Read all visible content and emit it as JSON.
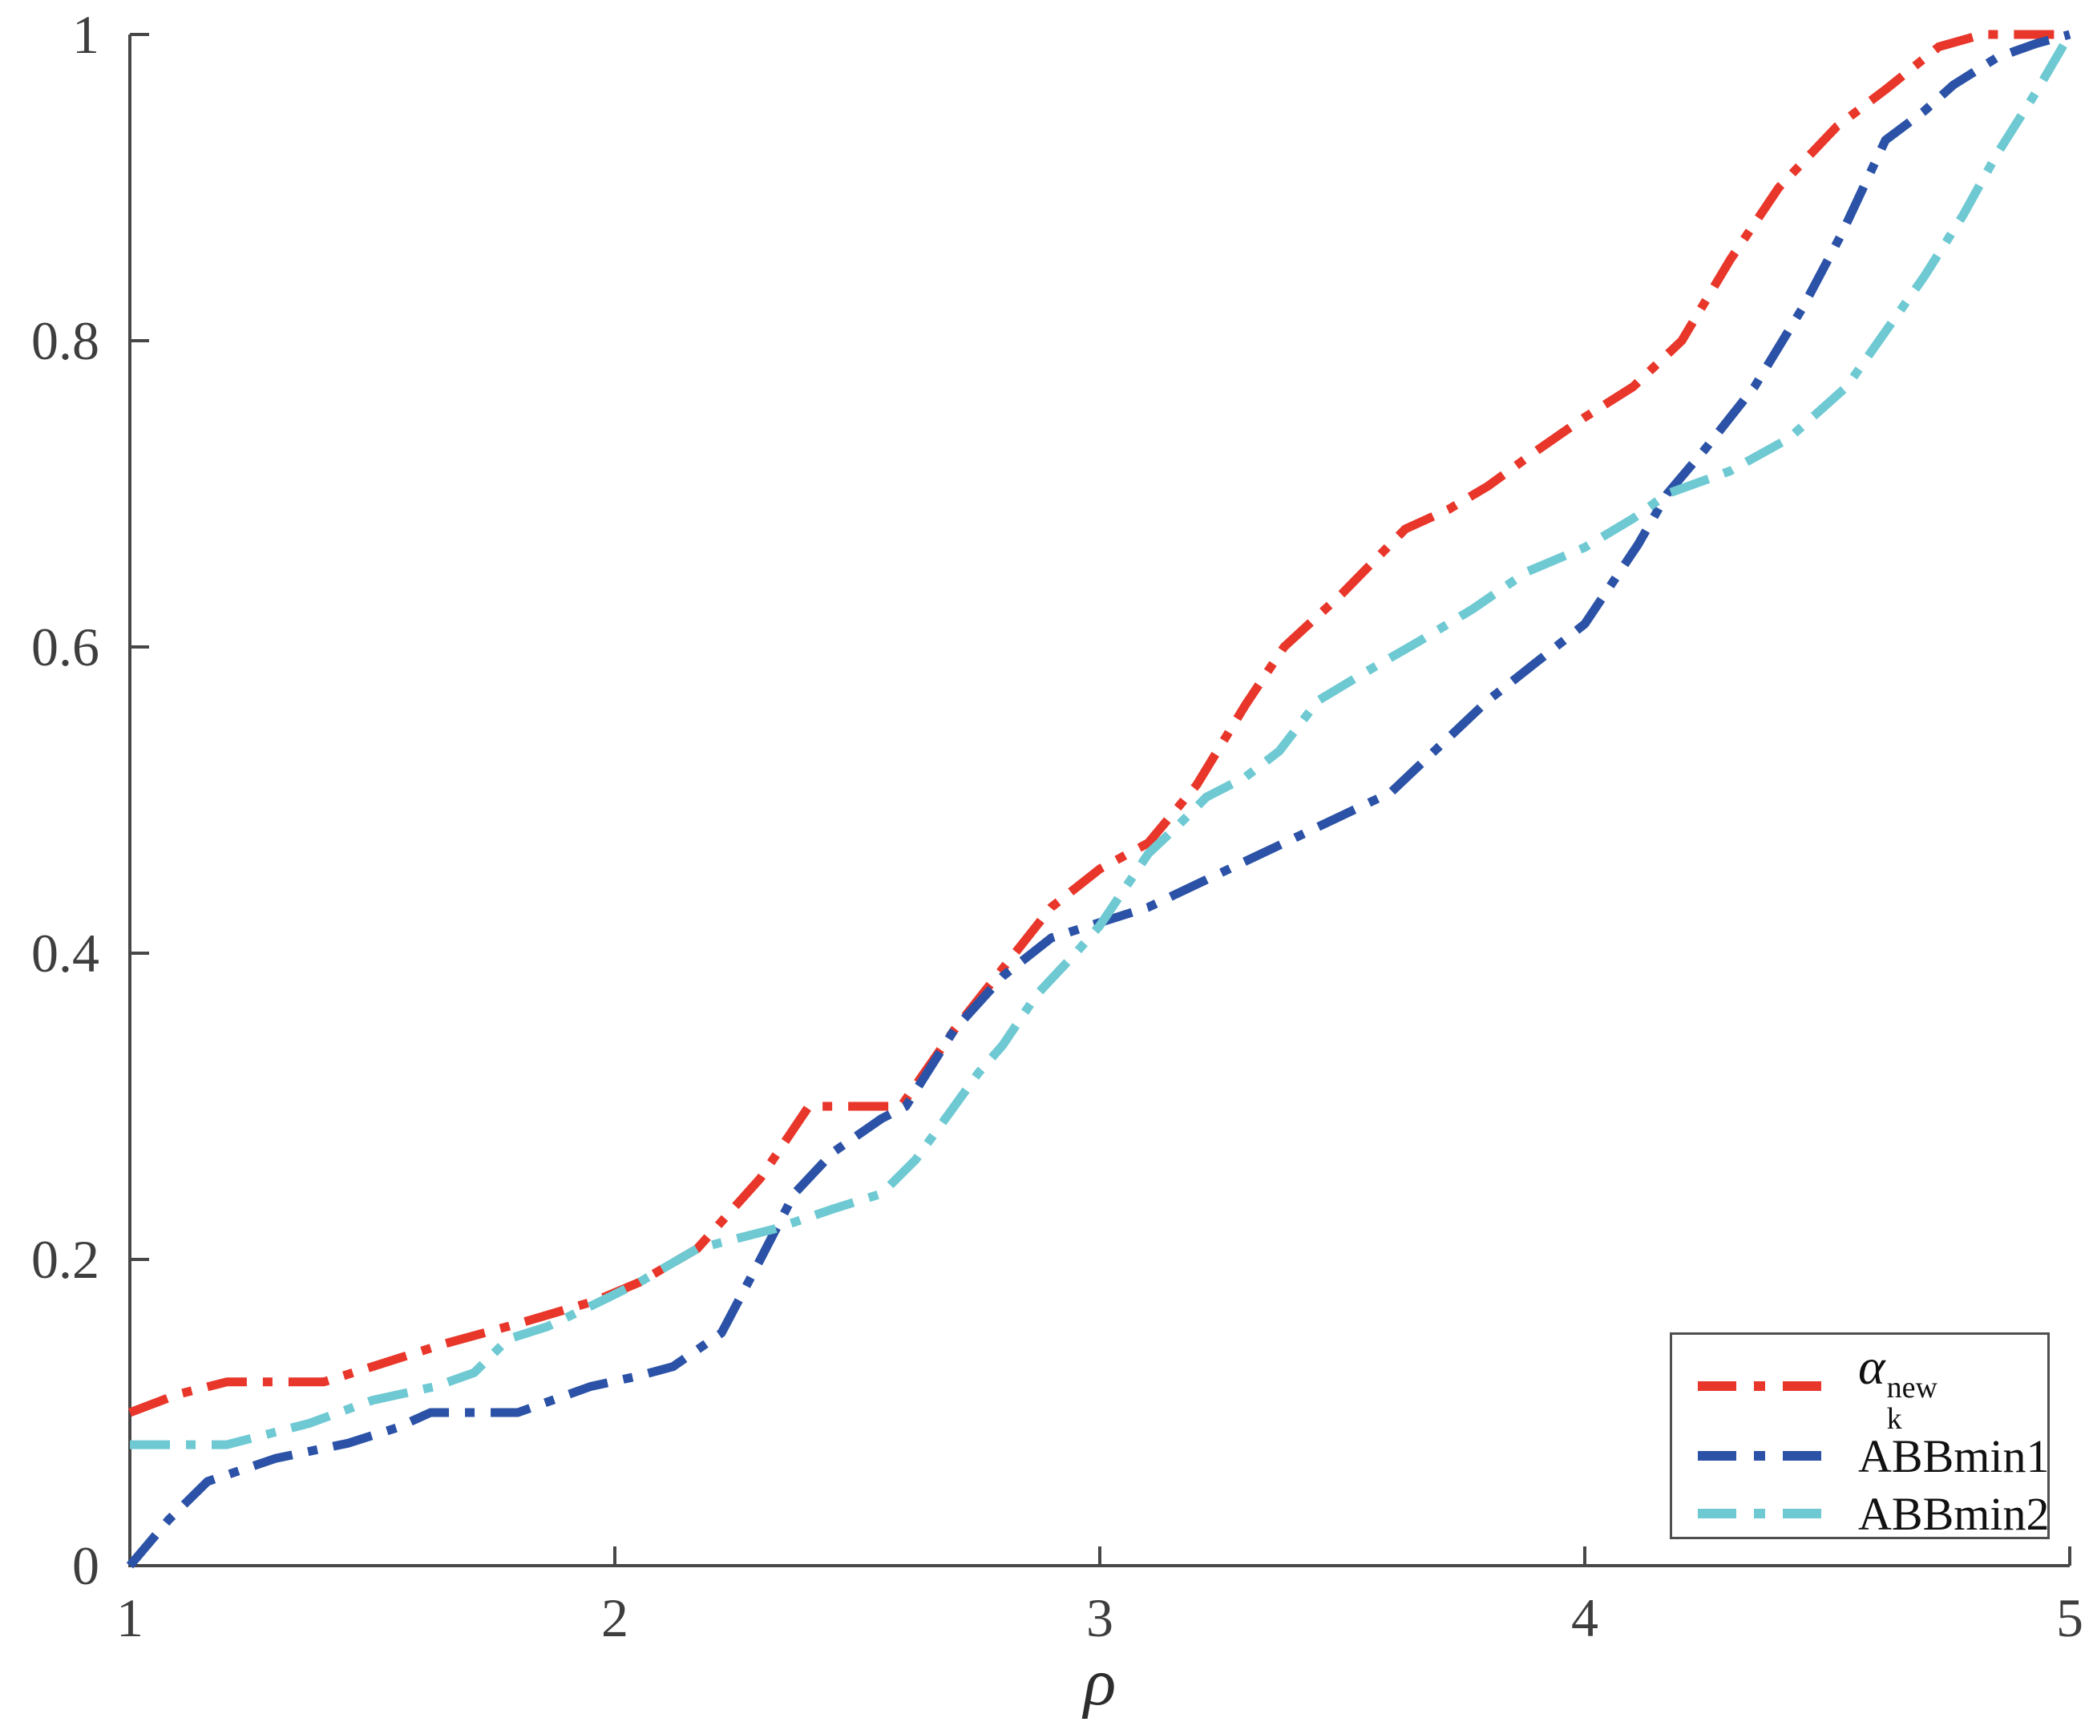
{
  "figure": {
    "background": "#ffffff"
  },
  "axis": {
    "line_color": "#474747",
    "tick_label_color": "#3e3e3e",
    "tick_length": 24,
    "line_width": 4
  },
  "legend": {
    "border_color": "#4f4f4f",
    "items": [
      {
        "name": "alpha-k-new",
        "symbol": "α",
        "sup": "new",
        "sub": "k"
      },
      {
        "name": "ABBmin1",
        "label": "ABBmin1"
      },
      {
        "name": "ABBmin2",
        "label": "ABBmin2"
      }
    ]
  },
  "chart_data": {
    "type": "line",
    "title": "",
    "xlabel": "ρ",
    "ylabel": "",
    "xlim": [
      1,
      5
    ],
    "ylim": [
      0,
      1
    ],
    "x_ticks": [
      1,
      2,
      3,
      4,
      5
    ],
    "x_tick_labels": [
      "1",
      "2",
      "3",
      "4",
      "5"
    ],
    "y_ticks": [
      0,
      0.2,
      0.4,
      0.6,
      0.8,
      1
    ],
    "y_tick_labels": [
      "0",
      "0.2",
      "0.4",
      "0.6",
      "0.8",
      "1"
    ],
    "grid": false,
    "legend_position": "lower right",
    "line_style": "dash-dot",
    "series": [
      {
        "name": "alpha_k_new",
        "color": "#e8362a",
        "points": [
          [
            1.0,
            0.1
          ],
          [
            1.1,
            0.112
          ],
          [
            1.2,
            0.12
          ],
          [
            1.4,
            0.12
          ],
          [
            1.5,
            0.13
          ],
          [
            1.65,
            0.145
          ],
          [
            1.8,
            0.158
          ],
          [
            1.96,
            0.173
          ],
          [
            2.05,
            0.185
          ],
          [
            2.17,
            0.207
          ],
          [
            2.3,
            0.253
          ],
          [
            2.4,
            0.3
          ],
          [
            2.59,
            0.3
          ],
          [
            2.7,
            0.35
          ],
          [
            2.8,
            0.39
          ],
          [
            2.9,
            0.43
          ],
          [
            3.0,
            0.455
          ],
          [
            3.1,
            0.472
          ],
          [
            3.2,
            0.51
          ],
          [
            3.3,
            0.562
          ],
          [
            3.38,
            0.6
          ],
          [
            3.5,
            0.635
          ],
          [
            3.63,
            0.677
          ],
          [
            3.72,
            0.69
          ],
          [
            3.8,
            0.705
          ],
          [
            3.9,
            0.728
          ],
          [
            4.0,
            0.75
          ],
          [
            4.1,
            0.77
          ],
          [
            4.2,
            0.8
          ],
          [
            4.3,
            0.853
          ],
          [
            4.4,
            0.9
          ],
          [
            4.52,
            0.94
          ],
          [
            4.62,
            0.964
          ],
          [
            4.73,
            0.992
          ],
          [
            4.82,
            1.0
          ],
          [
            5.0,
            1.0
          ]
        ]
      },
      {
        "name": "ABBmin1",
        "color": "#2b52a6",
        "points": [
          [
            1.0,
            0.0
          ],
          [
            1.08,
            0.03
          ],
          [
            1.16,
            0.055
          ],
          [
            1.3,
            0.07
          ],
          [
            1.45,
            0.08
          ],
          [
            1.55,
            0.09
          ],
          [
            1.62,
            0.1
          ],
          [
            1.8,
            0.1
          ],
          [
            1.95,
            0.117
          ],
          [
            2.05,
            0.124
          ],
          [
            2.12,
            0.13
          ],
          [
            2.22,
            0.152
          ],
          [
            2.3,
            0.2
          ],
          [
            2.37,
            0.243
          ],
          [
            2.45,
            0.27
          ],
          [
            2.55,
            0.292
          ],
          [
            2.6,
            0.3
          ],
          [
            2.7,
            0.35
          ],
          [
            2.8,
            0.385
          ],
          [
            2.9,
            0.41
          ],
          [
            3.0,
            0.42
          ],
          [
            3.1,
            0.43
          ],
          [
            3.2,
            0.445
          ],
          [
            3.3,
            0.46
          ],
          [
            3.4,
            0.475
          ],
          [
            3.5,
            0.49
          ],
          [
            3.6,
            0.505
          ],
          [
            3.7,
            0.535
          ],
          [
            3.8,
            0.565
          ],
          [
            3.9,
            0.59
          ],
          [
            4.0,
            0.615
          ],
          [
            4.11,
            0.667
          ],
          [
            4.17,
            0.7
          ],
          [
            4.25,
            0.73
          ],
          [
            4.35,
            0.77
          ],
          [
            4.45,
            0.822
          ],
          [
            4.53,
            0.87
          ],
          [
            4.62,
            0.931
          ],
          [
            4.7,
            0.95
          ],
          [
            4.76,
            0.967
          ],
          [
            4.85,
            0.985
          ],
          [
            4.93,
            0.994
          ],
          [
            5.0,
            1.0
          ]
        ]
      },
      {
        "name": "ABBmin2",
        "color": "#6ec9d2",
        "points": [
          [
            1.0,
            0.079
          ],
          [
            1.2,
            0.079
          ],
          [
            1.37,
            0.093
          ],
          [
            1.5,
            0.108
          ],
          [
            1.63,
            0.117
          ],
          [
            1.71,
            0.126
          ],
          [
            1.78,
            0.148
          ],
          [
            1.86,
            0.156
          ],
          [
            1.96,
            0.171
          ],
          [
            2.05,
            0.185
          ],
          [
            2.17,
            0.207
          ],
          [
            2.33,
            0.22
          ],
          [
            2.45,
            0.233
          ],
          [
            2.55,
            0.243
          ],
          [
            2.62,
            0.265
          ],
          [
            2.7,
            0.3
          ],
          [
            2.75,
            0.322
          ],
          [
            2.8,
            0.34
          ],
          [
            2.87,
            0.373
          ],
          [
            2.95,
            0.4
          ],
          [
            3.0,
            0.418
          ],
          [
            3.1,
            0.465
          ],
          [
            3.16,
            0.483
          ],
          [
            3.22,
            0.502
          ],
          [
            3.3,
            0.515
          ],
          [
            3.37,
            0.532
          ],
          [
            3.45,
            0.565
          ],
          [
            3.55,
            0.584
          ],
          [
            3.66,
            0.604
          ],
          [
            3.77,
            0.625
          ],
          [
            3.88,
            0.649
          ],
          [
            4.0,
            0.665
          ],
          [
            4.1,
            0.684
          ],
          [
            4.17,
            0.7
          ],
          [
            4.3,
            0.715
          ],
          [
            4.42,
            0.736
          ],
          [
            4.54,
            0.77
          ],
          [
            4.64,
            0.815
          ],
          [
            4.7,
            0.842
          ],
          [
            4.78,
            0.882
          ],
          [
            4.85,
            0.922
          ],
          [
            4.93,
            0.962
          ],
          [
            5.0,
            1.0
          ]
        ]
      }
    ]
  }
}
